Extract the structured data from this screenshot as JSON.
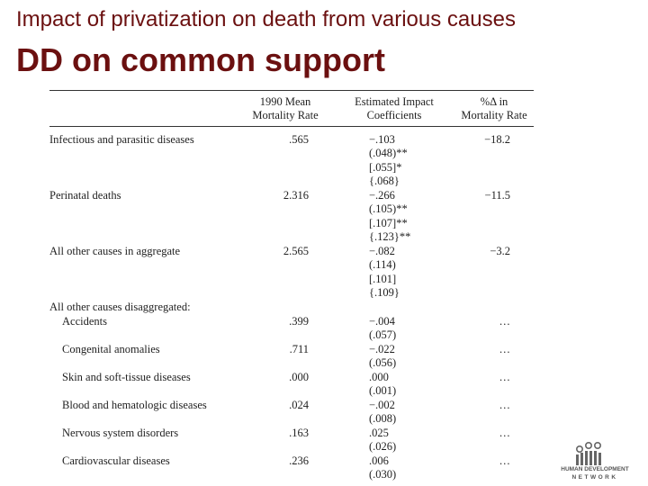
{
  "title": "Impact of privatization on death from various causes",
  "subtitle": "DD on common support",
  "table": {
    "headers": {
      "mean": [
        "1990 Mean",
        "Mortality Rate"
      ],
      "coef": [
        "Estimated Impact",
        "Coefficients"
      ],
      "pct": [
        "%Δ in",
        "Mortality Rate"
      ]
    },
    "group_label": "All other causes disaggregated:",
    "rows": [
      {
        "label": "Infectious and parasitic diseases",
        "mean": ".565",
        "coef": [
          "−.103",
          "(.048)**",
          "[.055]*",
          "{.068}"
        ],
        "pct": "−18.2",
        "indent": false
      },
      {
        "label": "Perinatal deaths",
        "mean": "2.316",
        "coef": [
          "−.266",
          "(.105)**",
          "[.107]**",
          "{.123}**"
        ],
        "pct": "−11.5",
        "indent": false
      },
      {
        "label": "All other causes in aggregate",
        "mean": "2.565",
        "coef": [
          "−.082",
          "(.114)",
          "[.101]",
          "{.109}"
        ],
        "pct": "−3.2",
        "indent": false
      },
      {
        "label": "Accidents",
        "mean": ".399",
        "coef": [
          "−.004",
          "(.057)"
        ],
        "pct": "…",
        "indent": true
      },
      {
        "label": "Congenital anomalies",
        "mean": ".711",
        "coef": [
          "−.022",
          "(.056)"
        ],
        "pct": "…",
        "indent": true
      },
      {
        "label": "Skin and soft-tissue diseases",
        "mean": ".000",
        "coef": [
          ".000",
          "(.001)"
        ],
        "pct": "…",
        "indent": true
      },
      {
        "label": "Blood and hematologic diseases",
        "mean": ".024",
        "coef": [
          "−.002",
          "(.008)"
        ],
        "pct": "…",
        "indent": true
      },
      {
        "label": "Nervous system disorders",
        "mean": ".163",
        "coef": [
          ".025",
          "(.026)"
        ],
        "pct": "…",
        "indent": true
      },
      {
        "label": "Cardiovascular diseases",
        "mean": ".236",
        "coef": [
          ".006",
          "(.030)"
        ],
        "pct": "…",
        "indent": true
      }
    ]
  },
  "logo": {
    "line1": "HUMAN DEVELOPMENT",
    "line2": "NETWORK",
    "color": "#555555"
  }
}
